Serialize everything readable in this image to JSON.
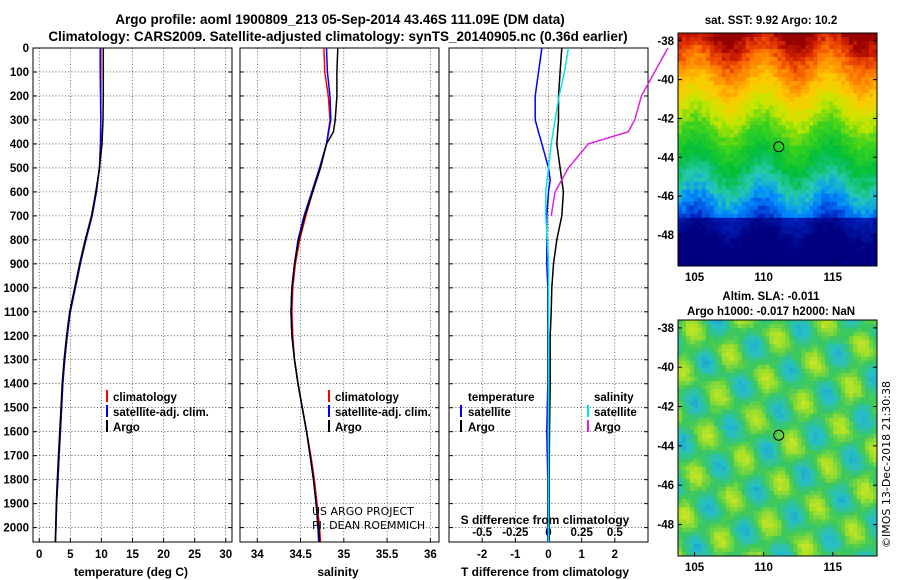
{
  "titles": {
    "line1": "Argo profile: aoml 1900809_213 05-Sep-2014 43.46S 111.09E (DM data)",
    "line2": "Climatology: CARS2009. Satellite-adjusted climatology: synTS_20140905.nc (0.36d earlier)"
  },
  "credits": {
    "project": "US ARGO PROJECT",
    "pi": "PI: DEAN ROEMMICH",
    "stamp": "©IMOS 13-Dec-2018 21:30:38"
  },
  "colors": {
    "climatology": "#ff0000",
    "satellite": "#0000ff",
    "argo": "#000000",
    "sal_satellite": "#00e5e5",
    "sal_argo": "#e020e0"
  },
  "depth_ticks": [
    "0",
    "100",
    "200",
    "300",
    "400",
    "500",
    "600",
    "700",
    "800",
    "900",
    "1000",
    "1100",
    "1200",
    "1300",
    "1400",
    "1500",
    "1600",
    "1700",
    "1800",
    "1900",
    "2000"
  ],
  "chart_data": [
    {
      "type": "line",
      "xlabel": "temperature (deg C)",
      "ylabel": "",
      "xlim": [
        -1,
        31
      ],
      "ylim": [
        2060,
        0
      ],
      "xticks": [
        "0",
        "5",
        "10",
        "15",
        "20",
        "25",
        "30"
      ],
      "xtick_values": [
        0,
        5,
        10,
        15,
        20,
        25,
        30
      ],
      "grid": true,
      "legend_position": "center-right",
      "series": [
        {
          "name": "climatology",
          "color": "#ff0000",
          "width": 1.5,
          "points": [
            [
              9.9,
              0
            ],
            [
              9.9,
              100
            ],
            [
              9.9,
              200
            ],
            [
              9.9,
              300
            ],
            [
              9.85,
              400
            ],
            [
              9.7,
              500
            ],
            [
              9.2,
              600
            ],
            [
              8.5,
              700
            ],
            [
              7.5,
              800
            ],
            [
              6.6,
              900
            ],
            [
              5.8,
              1000
            ],
            [
              5.0,
              1100
            ],
            [
              4.5,
              1200
            ],
            [
              4.1,
              1300
            ],
            [
              3.8,
              1400
            ],
            [
              3.6,
              1500
            ],
            [
              3.4,
              1600
            ],
            [
              3.2,
              1700
            ],
            [
              3.0,
              1800
            ],
            [
              2.8,
              1900
            ],
            [
              2.7,
              2000
            ],
            [
              2.6,
              2060
            ]
          ]
        },
        {
          "name": "satellite-adj. clim.",
          "color": "#0000ff",
          "width": 1.5,
          "points": [
            [
              9.8,
              0
            ],
            [
              9.8,
              100
            ],
            [
              9.85,
              200
            ],
            [
              9.9,
              300
            ],
            [
              9.85,
              400
            ],
            [
              9.7,
              500
            ],
            [
              9.2,
              600
            ],
            [
              8.5,
              700
            ],
            [
              7.5,
              800
            ],
            [
              6.6,
              900
            ],
            [
              5.8,
              1000
            ],
            [
              5.0,
              1100
            ],
            [
              4.5,
              1200
            ],
            [
              4.1,
              1300
            ],
            [
              3.8,
              1400
            ],
            [
              3.6,
              1500
            ],
            [
              3.4,
              1600
            ],
            [
              3.2,
              1700
            ],
            [
              3.0,
              1800
            ],
            [
              2.8,
              1900
            ],
            [
              2.7,
              2000
            ],
            [
              2.6,
              2060
            ]
          ]
        },
        {
          "name": "Argo",
          "color": "#000000",
          "width": 1.5,
          "points": [
            [
              10.3,
              0
            ],
            [
              10.3,
              100
            ],
            [
              10.3,
              200
            ],
            [
              10.25,
              300
            ],
            [
              10.1,
              400
            ],
            [
              9.7,
              500
            ],
            [
              9.1,
              600
            ],
            [
              8.4,
              700
            ],
            [
              7.4,
              800
            ],
            [
              6.5,
              900
            ],
            [
              5.7,
              1000
            ],
            [
              4.9,
              1100
            ],
            [
              4.4,
              1200
            ],
            [
              4.0,
              1300
            ],
            [
              3.7,
              1400
            ],
            [
              3.5,
              1500
            ],
            [
              3.3,
              1600
            ],
            [
              3.1,
              1700
            ],
            [
              2.9,
              1800
            ],
            [
              2.75,
              1900
            ],
            [
              2.65,
              2000
            ],
            [
              2.6,
              2060
            ]
          ]
        }
      ]
    },
    {
      "type": "line",
      "xlabel": "salinity",
      "ylabel": "",
      "xlim": [
        33.8,
        36.1
      ],
      "ylim": [
        2060,
        0
      ],
      "xticks": [
        "34",
        "34.5",
        "35",
        "35.5",
        "36"
      ],
      "xtick_values": [
        34,
        34.5,
        35,
        35.5,
        36
      ],
      "grid": true,
      "legend_position": "center-right",
      "series": [
        {
          "name": "climatology",
          "color": "#ff0000",
          "width": 1.5,
          "points": [
            [
              34.77,
              0
            ],
            [
              34.78,
              100
            ],
            [
              34.82,
              200
            ],
            [
              34.84,
              300
            ],
            [
              34.8,
              400
            ],
            [
              34.72,
              500
            ],
            [
              34.64,
              600
            ],
            [
              34.56,
              700
            ],
            [
              34.49,
              800
            ],
            [
              34.44,
              900
            ],
            [
              34.41,
              1000
            ],
            [
              34.4,
              1100
            ],
            [
              34.41,
              1200
            ],
            [
              34.43,
              1300
            ],
            [
              34.47,
              1400
            ],
            [
              34.52,
              1500
            ],
            [
              34.57,
              1600
            ],
            [
              34.62,
              1700
            ],
            [
              34.66,
              1800
            ],
            [
              34.69,
              1900
            ],
            [
              34.72,
              2000
            ],
            [
              34.73,
              2060
            ]
          ]
        },
        {
          "name": "satellite-adj. clim.",
          "color": "#0000ff",
          "width": 1.5,
          "points": [
            [
              34.8,
              0
            ],
            [
              34.81,
              100
            ],
            [
              34.84,
              200
            ],
            [
              34.85,
              300
            ],
            [
              34.8,
              400
            ],
            [
              34.72,
              500
            ],
            [
              34.63,
              600
            ],
            [
              34.54,
              700
            ],
            [
              34.47,
              800
            ],
            [
              34.43,
              900
            ],
            [
              34.4,
              1000
            ],
            [
              34.39,
              1100
            ],
            [
              34.4,
              1200
            ],
            [
              34.43,
              1300
            ],
            [
              34.47,
              1400
            ],
            [
              34.52,
              1500
            ],
            [
              34.57,
              1600
            ],
            [
              34.61,
              1700
            ],
            [
              34.65,
              1800
            ],
            [
              34.68,
              1900
            ],
            [
              34.7,
              2000
            ],
            [
              34.71,
              2060
            ]
          ]
        },
        {
          "name": "Argo",
          "color": "#000000",
          "width": 1.5,
          "points": [
            [
              34.93,
              0
            ],
            [
              34.92,
              100
            ],
            [
              34.92,
              200
            ],
            [
              34.9,
              300
            ],
            [
              34.88,
              350
            ],
            [
              34.8,
              400
            ],
            [
              34.73,
              500
            ],
            [
              34.64,
              600
            ],
            [
              34.55,
              700
            ],
            [
              34.48,
              800
            ],
            [
              34.43,
              900
            ],
            [
              34.4,
              1000
            ],
            [
              34.39,
              1100
            ],
            [
              34.4,
              1200
            ],
            [
              34.43,
              1300
            ],
            [
              34.47,
              1400
            ],
            [
              34.52,
              1500
            ],
            [
              34.57,
              1600
            ],
            [
              34.61,
              1700
            ],
            [
              34.65,
              1800
            ],
            [
              34.68,
              1900
            ],
            [
              34.71,
              2000
            ],
            [
              34.72,
              2060
            ]
          ]
        }
      ]
    },
    {
      "type": "line",
      "xlabel": "T difference from climatology",
      "xlabel2": "S difference from climatology",
      "ylabel": "",
      "xlim": [
        -3,
        3
      ],
      "ylim": [
        2060,
        0
      ],
      "xticks": [
        "-2",
        "-1",
        "0",
        "1",
        "2"
      ],
      "xtick_values": [
        -2,
        -1,
        0,
        1,
        2
      ],
      "xticks2": [
        "-0.5",
        "-0.25",
        "0",
        "0.25",
        "0.5"
      ],
      "xtick2_values": [
        -0.5,
        -0.25,
        0,
        0.25,
        0.5
      ],
      "grid": true,
      "legend_position": "center",
      "legend_headers": {
        "temperature": "temperature",
        "salinity": "salinity"
      },
      "series": [
        {
          "name": "satellite",
          "group": "temperature",
          "color": "#0000ff",
          "width": 1.5,
          "points": [
            [
              -0.2,
              0
            ],
            [
              -0.3,
              100
            ],
            [
              -0.4,
              200
            ],
            [
              -0.4,
              300
            ],
            [
              -0.3,
              350
            ],
            [
              -0.2,
              400
            ],
            [
              -0.1,
              450
            ],
            [
              0.0,
              500
            ],
            [
              0.05,
              550
            ],
            [
              0.0,
              600
            ],
            [
              -0.05,
              700
            ],
            [
              -0.05,
              800
            ],
            [
              -0.05,
              900
            ],
            [
              -0.02,
              1000
            ],
            [
              -0.02,
              1200
            ],
            [
              -0.02,
              1400
            ],
            [
              -0.05,
              1600
            ],
            [
              -0.02,
              1800
            ],
            [
              -0.02,
              2000
            ],
            [
              -0.02,
              2060
            ]
          ]
        },
        {
          "name": "Argo",
          "group": "temperature",
          "color": "#000000",
          "width": 1.5,
          "points": [
            [
              0.4,
              0
            ],
            [
              0.35,
              100
            ],
            [
              0.3,
              200
            ],
            [
              0.3,
              300
            ],
            [
              0.25,
              400
            ],
            [
              0.35,
              500
            ],
            [
              0.45,
              600
            ],
            [
              0.4,
              700
            ],
            [
              0.25,
              800
            ],
            [
              0.15,
              900
            ],
            [
              0.1,
              1000
            ],
            [
              0.08,
              1100
            ],
            [
              0.05,
              1200
            ],
            [
              0.05,
              1400
            ],
            [
              0.03,
              1600
            ],
            [
              0.02,
              1800
            ],
            [
              0.02,
              2000
            ],
            [
              0.02,
              2060
            ]
          ]
        },
        {
          "name": "satellite",
          "group": "salinity",
          "color": "#00e5e5",
          "width": 1.5,
          "points": [
            [
              0.15,
              0
            ],
            [
              0.12,
              100
            ],
            [
              0.08,
              200
            ],
            [
              0.05,
              300
            ],
            [
              0.02,
              400
            ],
            [
              0.0,
              500
            ],
            [
              -0.02,
              600
            ],
            [
              -0.02,
              700
            ],
            [
              0.0,
              900
            ],
            [
              0.0,
              1100
            ],
            [
              0.0,
              1400
            ],
            [
              0.0,
              1700
            ],
            [
              0.0,
              2000
            ],
            [
              0.0,
              2060
            ]
          ]
        },
        {
          "name": "Argo",
          "group": "salinity",
          "color": "#e020e0",
          "width": 1.5,
          "points": [
            [
              0.9,
              0
            ],
            [
              0.8,
              100
            ],
            [
              0.7,
              200
            ],
            [
              0.65,
              300
            ],
            [
              0.6,
              350
            ],
            [
              0.3,
              400
            ],
            [
              0.15,
              500
            ],
            [
              0.05,
              600
            ],
            [
              0.02,
              700
            ]
          ]
        }
      ]
    },
    {
      "type": "heatmap",
      "title": "sat. SST: 9.92 Argo: 10.2",
      "xlim": [
        103.8,
        118.2
      ],
      "ylim": [
        -49.6,
        -37.6
      ],
      "xticks": [
        "105",
        "110",
        "115"
      ],
      "xtick_values": [
        105,
        110,
        115
      ],
      "yticks": [
        "-38",
        "-40",
        "-42",
        "-44",
        "-46",
        "-48"
      ],
      "ytick_values": [
        -38,
        -40,
        -42,
        -44,
        -46,
        -48
      ],
      "marker": {
        "lon": 111.09,
        "lat": -43.46
      },
      "field": "SST"
    },
    {
      "type": "heatmap",
      "title": "Altim. SLA: -0.011",
      "subtitle": "Argo h1000: -0.017 h2000: NaN",
      "xlim": [
        103.8,
        118.2
      ],
      "ylim": [
        -49.6,
        -37.6
      ],
      "xticks": [
        "105",
        "110",
        "115"
      ],
      "xtick_values": [
        105,
        110,
        115
      ],
      "yticks": [
        "-38",
        "-40",
        "-42",
        "-44",
        "-46",
        "-48"
      ],
      "ytick_values": [
        -38,
        -40,
        -42,
        -44,
        -46,
        -48
      ],
      "marker": {
        "lon": 111.09,
        "lat": -43.46
      },
      "field": "SLA"
    }
  ]
}
